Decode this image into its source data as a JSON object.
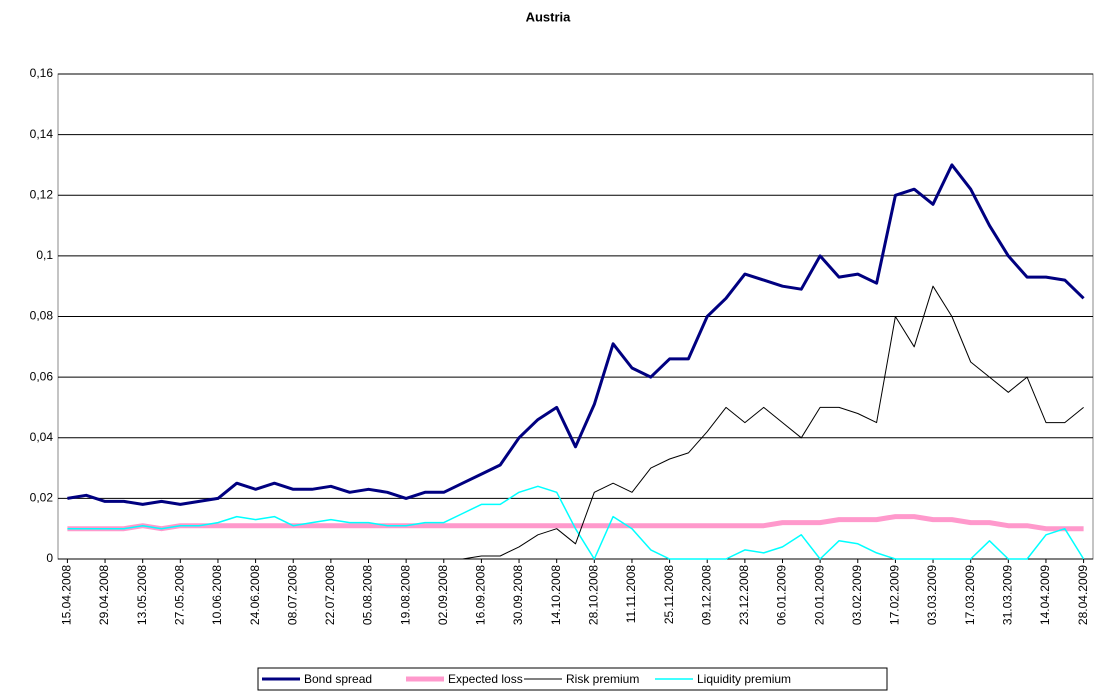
{
  "chart_data": {
    "type": "line",
    "title": "Austria",
    "categories": [
      "15.04.2008",
      null,
      "29.04.2008",
      null,
      "13.05.2008",
      null,
      "27.05.2008",
      null,
      "10.06.2008",
      null,
      "24.06.2008",
      null,
      "08.07.2008",
      null,
      "22.07.2008",
      null,
      "05.08.2008",
      null,
      "19.08.2008",
      null,
      "02.09.2008",
      null,
      "16.09.2008",
      null,
      "30.09.2008",
      null,
      "14.10.2008",
      null,
      "28.10.2008",
      null,
      "11.11.2008",
      null,
      "25.11.2008",
      null,
      "09.12.2008",
      null,
      "23.12.2008",
      null,
      "06.01.2009",
      null,
      "20.01.2009",
      null,
      "03.02.2009",
      null,
      "17.02.2009",
      null,
      "03.03.2009",
      null,
      "17.03.2009",
      null,
      "31.03.2009",
      null,
      "14.04.2009",
      null,
      "28.04.2009"
    ],
    "series": [
      {
        "name": "Bond spread",
        "color": "#000080",
        "values": [
          0.02,
          0.021,
          0.019,
          0.019,
          0.018,
          0.019,
          0.018,
          0.019,
          0.02,
          0.025,
          0.023,
          0.025,
          0.023,
          0.023,
          0.024,
          0.022,
          0.023,
          0.022,
          0.02,
          0.022,
          0.022,
          0.025,
          0.028,
          0.031,
          0.04,
          0.046,
          0.05,
          0.037,
          0.051,
          0.071,
          0.063,
          0.06,
          0.066,
          0.066,
          0.08,
          0.086,
          0.094,
          0.092,
          0.09,
          0.089,
          0.1,
          0.093,
          0.094,
          0.091,
          0.12,
          0.122,
          0.117,
          0.13,
          0.122,
          0.11,
          0.1,
          0.093,
          0.093,
          0.092,
          0.086
        ]
      },
      {
        "name": "Expected loss",
        "color": "#ff99cc",
        "values": [
          0.01,
          0.01,
          0.01,
          0.01,
          0.011,
          0.01,
          0.011,
          0.011,
          0.011,
          0.011,
          0.011,
          0.011,
          0.011,
          0.011,
          0.011,
          0.011,
          0.011,
          0.011,
          0.011,
          0.011,
          0.011,
          0.011,
          0.011,
          0.011,
          0.011,
          0.011,
          0.011,
          0.011,
          0.011,
          0.011,
          0.011,
          0.011,
          0.011,
          0.011,
          0.011,
          0.011,
          0.011,
          0.011,
          0.012,
          0.012,
          0.012,
          0.013,
          0.013,
          0.013,
          0.014,
          0.014,
          0.013,
          0.013,
          0.012,
          0.012,
          0.011,
          0.011,
          0.01,
          0.01,
          0.01
        ]
      },
      {
        "name": "Risk premium",
        "color": "#000000",
        "values": [
          0.0,
          0.0,
          0.0,
          0.0,
          0.0,
          0.0,
          0.0,
          0.0,
          0.0,
          0.0,
          0.0,
          0.0,
          0.0,
          0.0,
          0.0,
          0.0,
          0.0,
          0.0,
          0.0,
          0.0,
          0.0,
          0.0,
          0.001,
          0.001,
          0.004,
          0.008,
          0.01,
          0.005,
          0.022,
          0.025,
          0.022,
          0.03,
          0.033,
          0.035,
          0.042,
          0.05,
          0.045,
          0.05,
          0.045,
          0.04,
          0.05,
          0.05,
          0.048,
          0.045,
          0.08,
          0.07,
          0.09,
          0.08,
          0.065,
          0.06,
          0.055,
          0.06,
          0.045,
          0.045,
          0.05
        ]
      },
      {
        "name": "Liquidity premium",
        "color": "#00ffff",
        "values": [
          0.01,
          0.01,
          0.01,
          0.01,
          0.011,
          0.01,
          0.011,
          0.011,
          0.012,
          0.014,
          0.013,
          0.014,
          0.011,
          0.012,
          0.013,
          0.012,
          0.012,
          0.011,
          0.011,
          0.012,
          0.012,
          0.015,
          0.018,
          0.018,
          0.022,
          0.024,
          0.022,
          0.01,
          0.0,
          0.014,
          0.01,
          0.003,
          0.0,
          0.0,
          0.0,
          0.0,
          0.003,
          0.002,
          0.004,
          0.008,
          0.0,
          0.006,
          0.005,
          0.002,
          0.0,
          0.0,
          0.0,
          0.0,
          0.0,
          0.006,
          0.0,
          0.0,
          0.008,
          0.01,
          0.0
        ]
      }
    ],
    "ylim": [
      0,
      0.16
    ],
    "yticks": [
      0,
      {
        "value": 0.02,
        "label": "0,02"
      },
      {
        "value": 0.04,
        "label": "0,04"
      },
      {
        "value": 0.06,
        "label": "0,06"
      },
      {
        "value": 0.08,
        "label": "0,08"
      },
      {
        "value": 0.1,
        "label": "0,1"
      },
      {
        "value": 0.12,
        "label": "0,12"
      },
      {
        "value": 0.14,
        "label": "0,14"
      },
      {
        "value": 0.16,
        "label": "0,16"
      }
    ],
    "grid": true,
    "legend": "bottom"
  }
}
